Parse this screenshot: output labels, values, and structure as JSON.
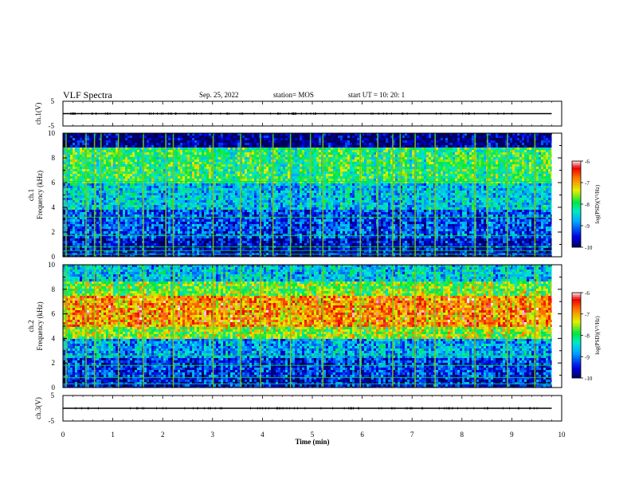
{
  "header": {
    "title": "VLF Spectra",
    "date": "Sep. 25, 2022",
    "station": "station= MOS",
    "start_ut": "start UT =  10: 20: 1"
  },
  "chart_data": [
    {
      "type": "line",
      "panel": "ch1-voltage",
      "ylabel": "ch.1(V)",
      "ylim": [
        -5,
        5
      ],
      "yticks": [
        "5",
        "-5"
      ],
      "xlim": [
        0,
        10
      ],
      "series": [
        {
          "x": [
            0,
            9.8
          ],
          "values": [
            0,
            0
          ]
        }
      ]
    },
    {
      "type": "heatmap",
      "panel": "ch1-spectrogram",
      "ylabel": "ch.1\nFrequency (kHz)",
      "ylim": [
        0,
        10
      ],
      "yticks": [
        "0",
        "2",
        "4",
        "6",
        "8",
        "10"
      ],
      "xlim": [
        0,
        10
      ],
      "data_end_min": 9.8,
      "colorbar": {
        "label": "log(PSD)(V²/Hz)",
        "range": [
          -10,
          -6
        ],
        "ticks": [
          "-6",
          "-7",
          "-8",
          "-9",
          "-10"
        ]
      },
      "bands": [
        {
          "from_khz": 0,
          "to_khz": 1.5,
          "level": -9.6
        },
        {
          "from_khz": 1.5,
          "to_khz": 4,
          "level": -9.2
        },
        {
          "from_khz": 4,
          "to_khz": 6,
          "level": -8.6
        },
        {
          "from_khz": 6,
          "to_khz": 9,
          "level": -8.0
        },
        {
          "from_khz": 9,
          "to_khz": 10,
          "level": -9.9
        }
      ],
      "lines_khz": [
        0.2,
        0.5,
        0.8,
        1.7,
        3.2,
        6.1
      ],
      "burst_times_min": [
        0.05,
        0.45,
        0.62,
        0.75,
        1.1,
        1.6,
        2.05,
        2.2,
        3.0,
        3.55,
        3.95,
        4.2,
        4.55,
        4.95,
        5.2,
        5.95,
        6.3,
        6.6,
        6.75,
        7.05,
        7.45,
        8.25,
        8.5,
        8.9,
        9.45
      ]
    },
    {
      "type": "heatmap",
      "panel": "ch2-spectrogram",
      "ylabel": "ch.2\nFrequency (kHz)",
      "ylim": [
        0,
        10
      ],
      "yticks": [
        "0",
        "2",
        "4",
        "6",
        "8",
        "10"
      ],
      "xlim": [
        0,
        10
      ],
      "data_end_min": 9.8,
      "colorbar": {
        "label": "log(PSD)(V²/Hz)",
        "range": [
          -10,
          -6
        ],
        "ticks": [
          "-6",
          "-7",
          "-8",
          "-9",
          "-10"
        ]
      },
      "bands": [
        {
          "from_khz": 0,
          "to_khz": 1.0,
          "level": -9.5
        },
        {
          "from_khz": 1.0,
          "to_khz": 2.5,
          "level": -9.3
        },
        {
          "from_khz": 2.5,
          "to_khz": 4.0,
          "level": -8.8
        },
        {
          "from_khz": 4.0,
          "to_khz": 5.0,
          "level": -7.6
        },
        {
          "from_khz": 5.0,
          "to_khz": 7.5,
          "level": -6.9
        },
        {
          "from_khz": 7.5,
          "to_khz": 8.8,
          "level": -7.7
        },
        {
          "from_khz": 8.8,
          "to_khz": 10,
          "level": -8.6
        }
      ],
      "lines_khz": [
        0.3,
        0.8,
        1.8,
        2.6
      ],
      "burst_times_min": [
        0.05,
        0.45,
        0.62,
        1.1,
        1.6,
        2.2,
        3.0,
        3.55,
        3.95,
        4.55,
        5.2,
        5.95,
        6.6,
        7.05,
        7.45,
        8.25,
        8.9,
        9.45
      ]
    },
    {
      "type": "line",
      "panel": "ch3-voltage",
      "ylabel": "ch.3(V)",
      "ylim": [
        -5,
        5
      ],
      "yticks": [
        "5",
        "-5"
      ],
      "xlim": [
        0,
        10
      ],
      "xlabel": "Time  (min)",
      "xticks": [
        "0",
        "1",
        "2",
        "3",
        "4",
        "5",
        "6",
        "7",
        "8",
        "9",
        "10"
      ],
      "series": [
        {
          "x": [
            0,
            9.8
          ],
          "values": [
            0,
            0
          ]
        }
      ]
    }
  ]
}
